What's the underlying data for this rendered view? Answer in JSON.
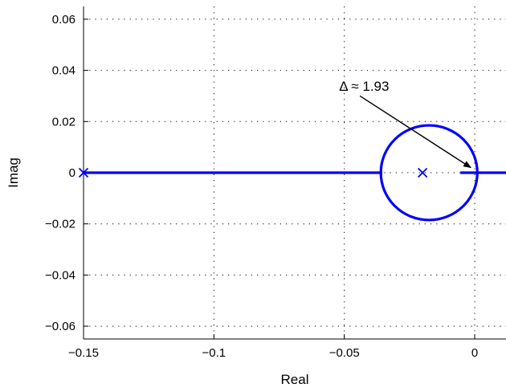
{
  "chart_data": {
    "type": "line",
    "title": "",
    "xlabel": "Real",
    "ylabel": "Imag",
    "xlim": [
      -0.15,
      0.012
    ],
    "ylim": [
      -0.065,
      0.065
    ],
    "grid": true,
    "x_ticks": [
      {
        "value": -0.15,
        "label": "−0.15"
      },
      {
        "value": -0.1,
        "label": "−0.1"
      },
      {
        "value": -0.05,
        "label": "−0.05"
      },
      {
        "value": 0,
        "label": "0"
      }
    ],
    "y_ticks": [
      {
        "value": 0.06,
        "label": "0.06"
      },
      {
        "value": 0.04,
        "label": "0.04"
      },
      {
        "value": 0.02,
        "label": "0.02"
      },
      {
        "value": 0,
        "label": "0"
      },
      {
        "value": -0.02,
        "label": "−0.02"
      },
      {
        "value": -0.04,
        "label": "−0.04"
      },
      {
        "value": -0.06,
        "label": "−0.06"
      }
    ],
    "series_color": "#0000ff",
    "segments": [
      {
        "x": [
          -0.15,
          -0.0355
        ],
        "y": [
          0,
          0
        ]
      },
      {
        "x": [
          -0.0055,
          0.012
        ],
        "y": [
          0,
          0
        ]
      }
    ],
    "circle": {
      "center": [
        -0.0175,
        0
      ],
      "radius_real": 0.0185,
      "radius_imag": 0.0185
    },
    "poles": [
      {
        "x": -0.15,
        "y": 0
      },
      {
        "x": -0.02,
        "y": 0
      }
    ],
    "annotation": {
      "text": "Δ ≈ 1.93",
      "text_at": [
        -0.052,
        0.032
      ],
      "arrow_from": [
        -0.044,
        0.03
      ],
      "arrow_to": [
        -0.0015,
        0.002
      ]
    }
  }
}
